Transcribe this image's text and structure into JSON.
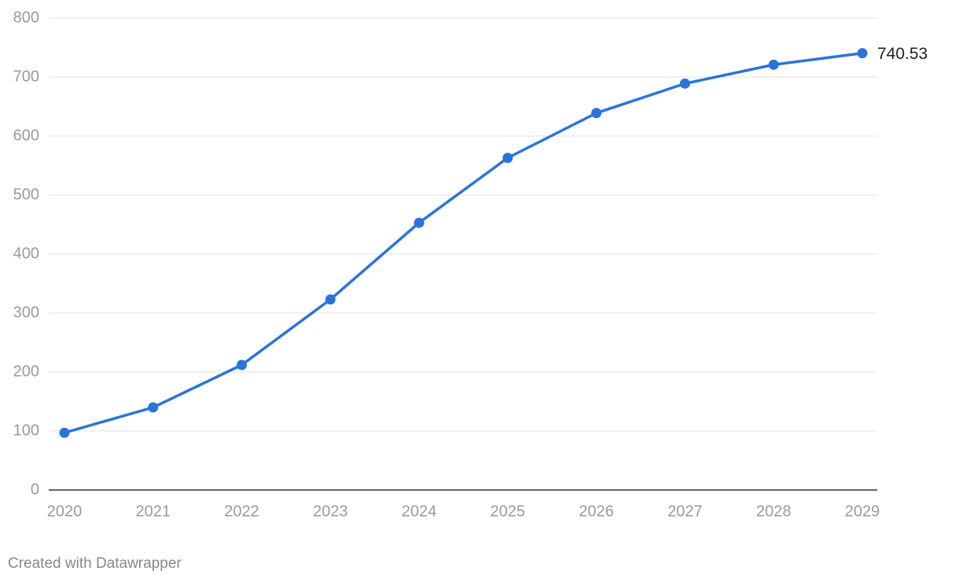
{
  "chart_data": {
    "type": "line",
    "x": [
      2020,
      2021,
      2022,
      2023,
      2024,
      2025,
      2026,
      2027,
      2028,
      2029
    ],
    "series": [
      {
        "color": "#2a74d9",
        "values": [
          97,
          140,
          212,
          323,
          453,
          563,
          639,
          689,
          721,
          740.53
        ]
      }
    ],
    "xlim": [
      2020,
      2029
    ],
    "xticks": [
      2020,
      2021,
      2022,
      2023,
      2024,
      2025,
      2026,
      2027,
      2028,
      2029
    ],
    "ylim": [
      0,
      800
    ],
    "yticks": [
      0,
      100,
      200,
      300,
      400,
      500,
      600,
      700,
      800
    ],
    "grid": true,
    "data_labels": "last",
    "source": "Created with Datawrapper"
  }
}
